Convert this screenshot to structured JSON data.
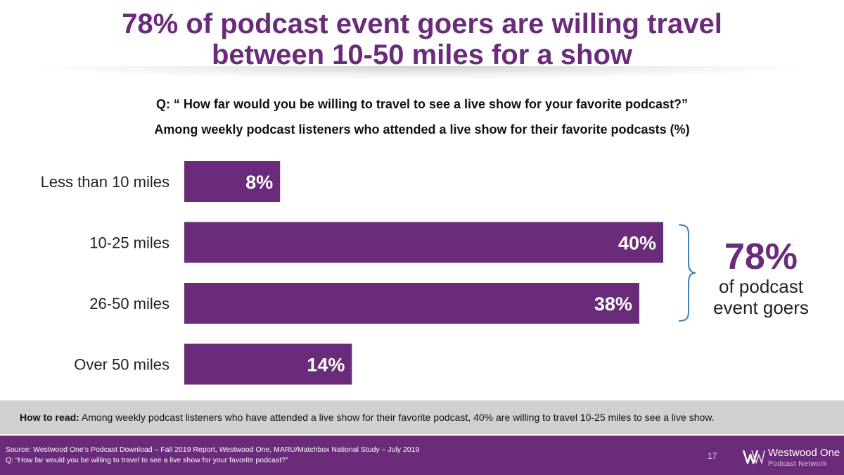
{
  "title_line1": "78% of podcast event goers are willing travel",
  "title_line2": "between 10-50 miles for a show",
  "question": "Q: “ How far would you be willing to travel to see a live show for your favorite podcast?”",
  "base": "Among weekly podcast listeners who attended a live show for their favorite podcasts (%)",
  "chart_data": {
    "type": "bar",
    "orientation": "horizontal",
    "categories": [
      "Less than 10 miles",
      "10-25 miles",
      "26-50 miles",
      "Over 50 miles"
    ],
    "values": [
      8,
      40,
      38,
      14
    ],
    "value_labels": [
      "8%",
      "40%",
      "38%",
      "14%"
    ],
    "unit": "%",
    "xlim": [
      0,
      40
    ],
    "bar_color": "#6a2b7a",
    "annotation": {
      "value": "78%",
      "text_line1": "of podcast",
      "text_line2": "event goers",
      "spans": [
        "10-25 miles",
        "26-50 miles"
      ],
      "brace_color": "#3e7fb4"
    }
  },
  "how_to_read": {
    "label": "How to read:",
    "text": "Among weekly podcast listeners who have attended a live show for their favorite podcast, 40% are willing to travel 10-25 miles to see a live show."
  },
  "footer": {
    "source_line1": "Source: Westwood One’s Podcast Download – Fall 2019 Report, Westwood One, MARU/Matchbox National Study – July 2019",
    "source_line2": "Q: “How far would you be willing to travel to see a live show for your favorite podcast?”",
    "page_number": "17",
    "logo_line1": "Westwood One",
    "logo_line2": "Podcast Network"
  }
}
